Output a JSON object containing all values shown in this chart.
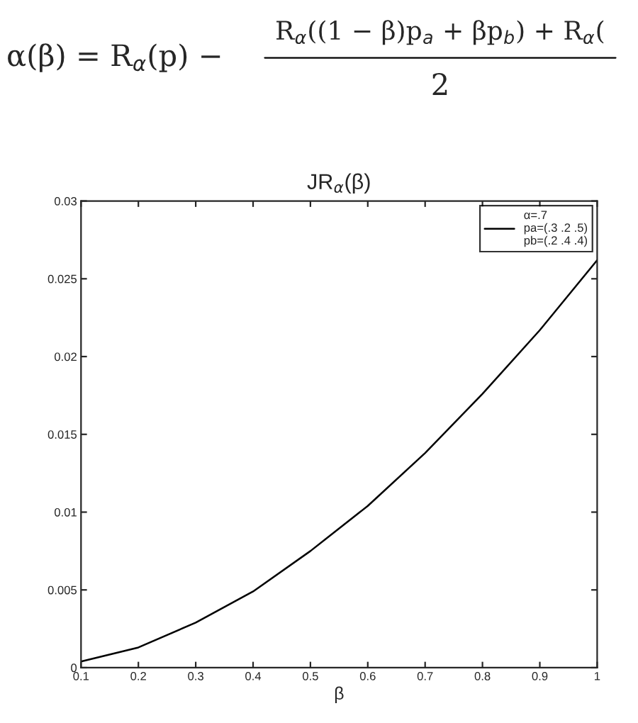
{
  "chart_data": {
    "type": "line",
    "title": "JR$_{α}$(β)",
    "xlabel": "β",
    "annotations": [
      "α(β) = R$_{α}$(p) −",
      "R$_{α}$((1 − β)p$_{a}$ + βp$_{b}$) + R$_{α}$(",
      "2"
    ],
    "x": [
      0.1,
      0.2,
      0.3,
      0.4,
      0.5,
      0.6,
      0.7,
      0.8,
      0.9,
      1.0
    ],
    "series": [
      {
        "name": "α=.7\npa=(.3 .2 .5)\npb=(.2 .4 .4)",
        "color": "#000000",
        "values": [
          0.0004,
          0.0013,
          0.0029,
          0.0049,
          0.0075,
          0.0104,
          0.0138,
          0.0176,
          0.0217,
          0.0262
        ]
      }
    ],
    "xlim": [
      0.1,
      1
    ],
    "ylim": [
      0,
      0.03
    ],
    "xticks": [
      0.1,
      0.2,
      0.3,
      0.4,
      0.5,
      0.6,
      0.7,
      0.8,
      0.9,
      1
    ],
    "yticks": [
      0,
      0.005,
      0.01,
      0.015,
      0.02,
      0.025,
      0.03
    ],
    "legend": "top right",
    "grid": false,
    "marker": "none",
    "line_style": "solid"
  }
}
